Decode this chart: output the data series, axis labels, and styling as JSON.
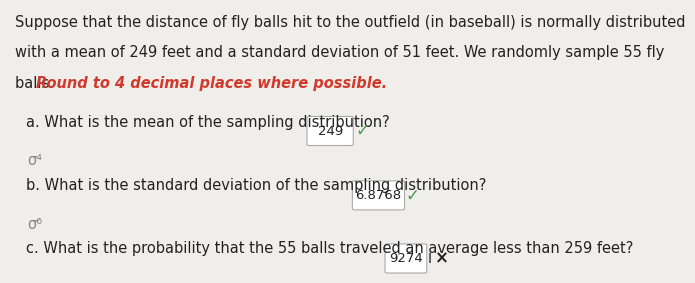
{
  "bg_color": "#f0eeeb",
  "red_color": "#d0392b",
  "black_color": "#222222",
  "gray_color": "#888888",
  "green_color": "#4a9a4a",
  "line_a_label": "a. What is the mean of the sampling distribution?",
  "line_a_value": "249",
  "line_b_label": "b. What is the standard deviation of the sampling distribution?",
  "line_b_value": "6.8768",
  "line_c_label": "c. What is the probability that the 55 balls traveled an average less than 259 feet?",
  "line_c_value": "9274",
  "font_size_body": 10.5,
  "font_size_question": 10.5,
  "para_line1": "Suppose that the distance of fly balls hit to the outfield (in baseball) is normally distributed",
  "para_line2": "with a mean of 249 feet and a standard deviation of 51 feet. We randomly sample 55 fly",
  "para_line3_black": "balls. ",
  "para_line3_red": "Round to 4 decimal places where possible.",
  "checkmark": "✓",
  "sigma_super4": "σ⁴",
  "sigma_super6": "σ⁶",
  "times": "×"
}
